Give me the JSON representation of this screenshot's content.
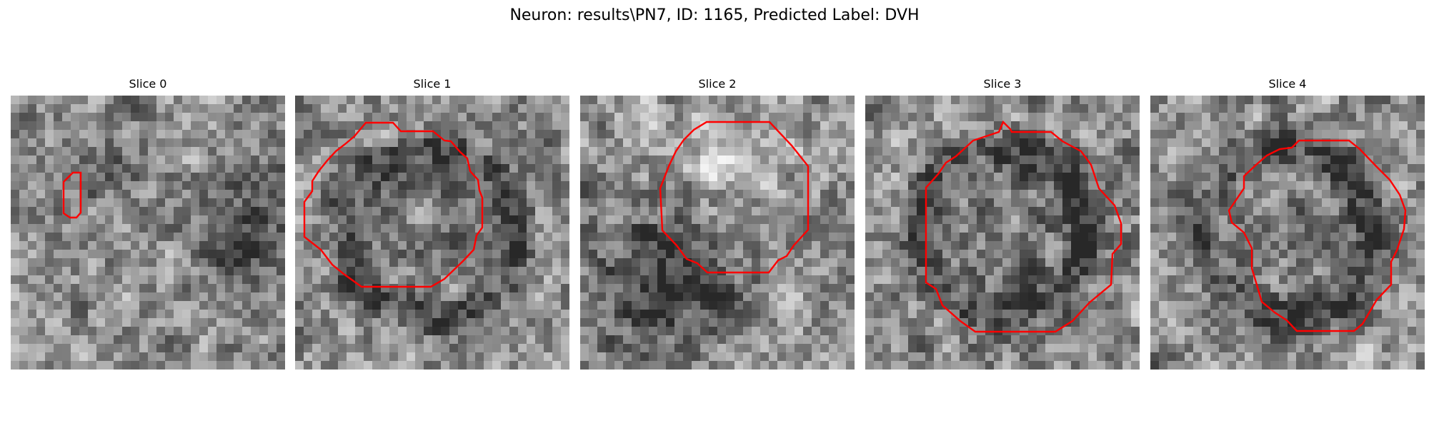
{
  "figure": {
    "title": "Neuron: results\\PN7, ID: 1165, Predicted Label: DVH"
  },
  "colors": {
    "contour": "#ff0000",
    "background": "#ffffff",
    "colormap": "gray"
  },
  "panels": [
    {
      "title": "Slice 0",
      "seed": 11,
      "style": "noise"
    },
    {
      "title": "Slice 1",
      "seed": 23,
      "style": "ring"
    },
    {
      "title": "Slice 2",
      "seed": 37,
      "style": "blob"
    },
    {
      "title": "Slice 3",
      "seed": 41,
      "style": "ring"
    },
    {
      "title": "Slice 4",
      "seed": 59,
      "style": "ring"
    }
  ]
}
